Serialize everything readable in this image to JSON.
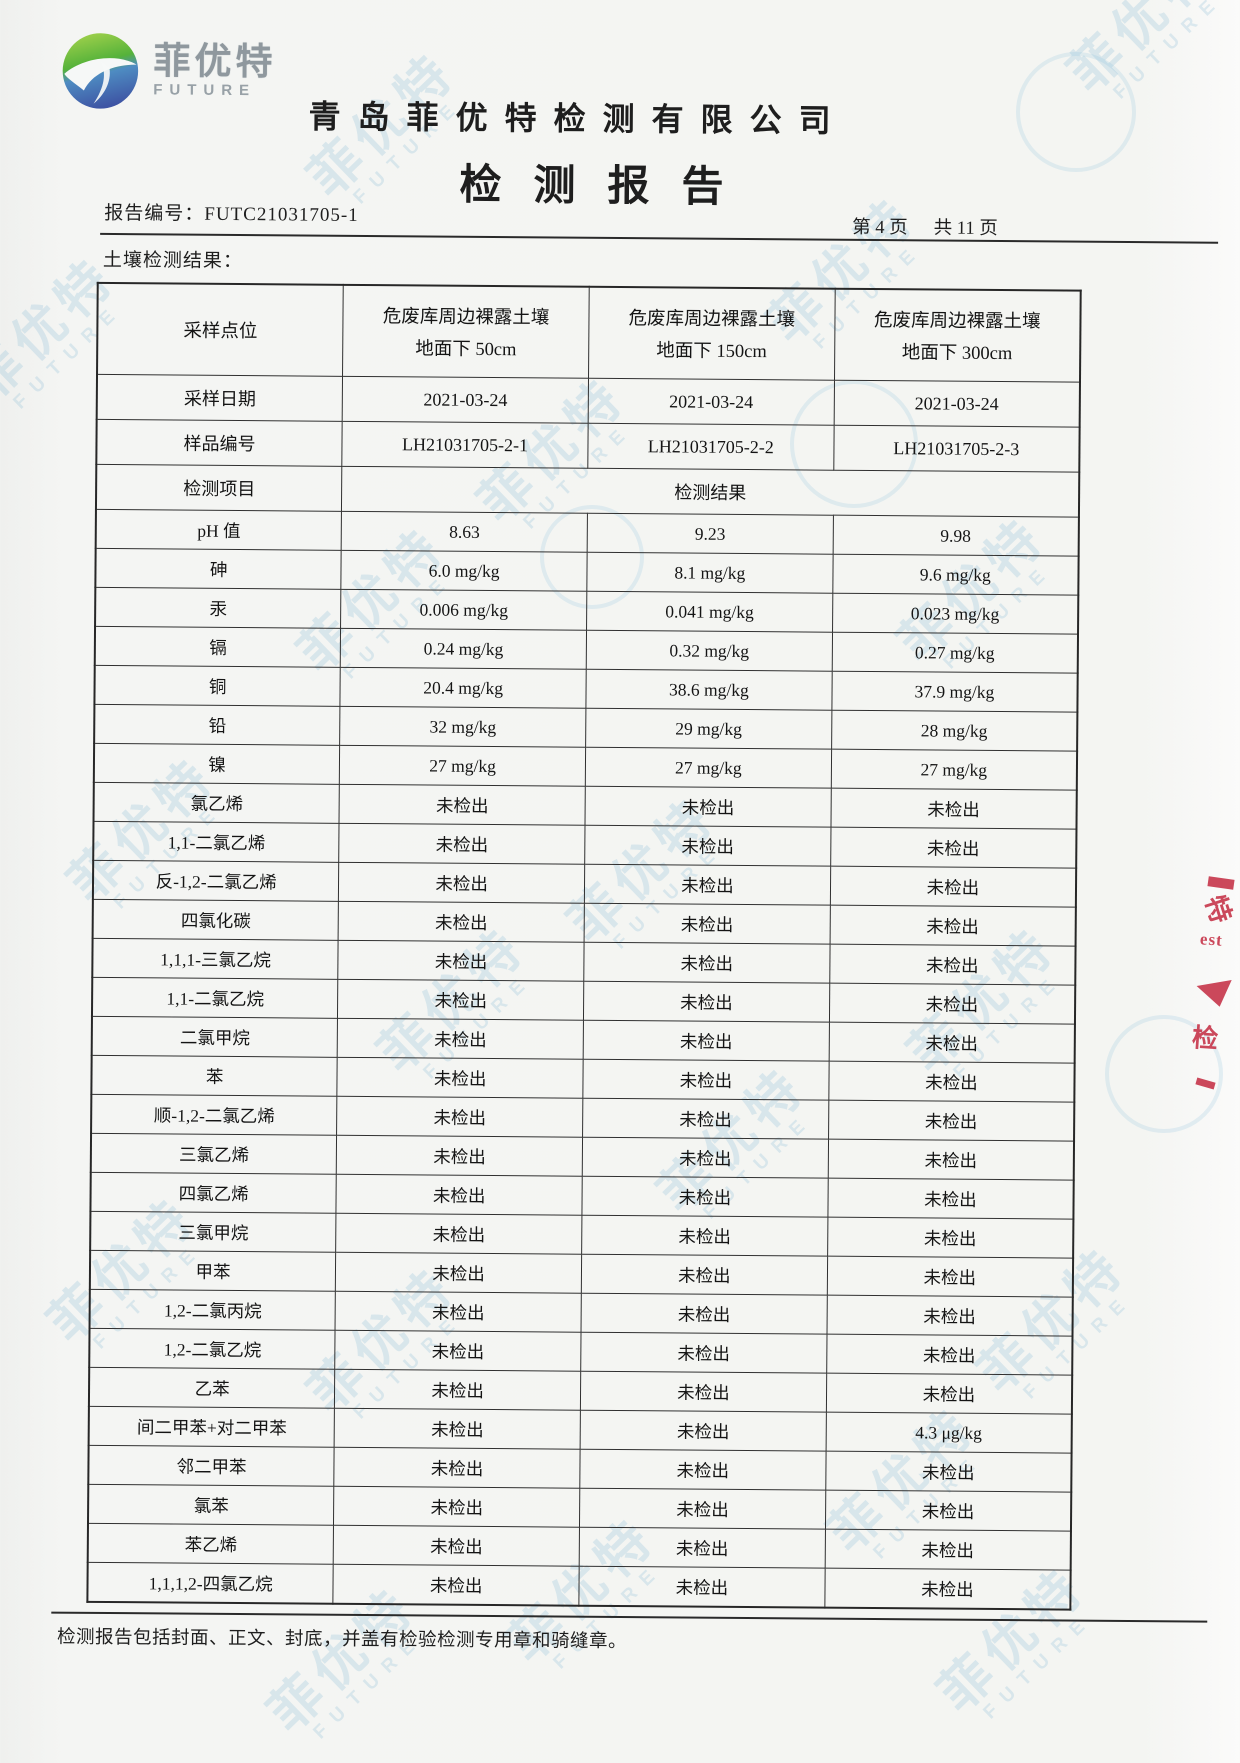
{
  "header": {
    "company_name": "青岛菲优特检测有限公司",
    "report_title": "检测报告",
    "report_no_label": "报告编号：",
    "report_no": "FUTC21031705-1",
    "page_current": "第 4 页",
    "page_total": "共 11 页",
    "section_label": "土壤检测结果："
  },
  "logo": {
    "brand_cn": "菲优特",
    "brand_en": "FUTURE"
  },
  "table": {
    "col_labels": {
      "site": "采样点位",
      "date": "采样日期",
      "sample_id": "样品编号",
      "item": "检测项目",
      "result": "检测结果"
    },
    "sites": [
      {
        "line1": "危废库周边裸露土壤",
        "line2": "地面下 50cm"
      },
      {
        "line1": "危废库周边裸露土壤",
        "line2": "地面下 150cm"
      },
      {
        "line1": "危废库周边裸露土壤",
        "line2": "地面下 300cm"
      }
    ],
    "dates": [
      "2021-03-24",
      "2021-03-24",
      "2021-03-24"
    ],
    "sample_ids": [
      "LH21031705-2-1",
      "LH21031705-2-2",
      "LH21031705-2-3"
    ],
    "rows": [
      {
        "item": "pH 值",
        "values": [
          "8.63",
          "9.23",
          "9.98"
        ]
      },
      {
        "item": "砷",
        "values": [
          "6.0 mg/kg",
          "8.1 mg/kg",
          "9.6 mg/kg"
        ]
      },
      {
        "item": "汞",
        "values": [
          "0.006 mg/kg",
          "0.041 mg/kg",
          "0.023 mg/kg"
        ]
      },
      {
        "item": "镉",
        "values": [
          "0.24 mg/kg",
          "0.32 mg/kg",
          "0.27 mg/kg"
        ]
      },
      {
        "item": "铜",
        "values": [
          "20.4 mg/kg",
          "38.6 mg/kg",
          "37.9 mg/kg"
        ]
      },
      {
        "item": "铅",
        "values": [
          "32 mg/kg",
          "29 mg/kg",
          "28 mg/kg"
        ]
      },
      {
        "item": "镍",
        "values": [
          "27 mg/kg",
          "27 mg/kg",
          "27 mg/kg"
        ]
      },
      {
        "item": "氯乙烯",
        "values": [
          "未检出",
          "未检出",
          "未检出"
        ]
      },
      {
        "item": "1,1-二氯乙烯",
        "values": [
          "未检出",
          "未检出",
          "未检出"
        ]
      },
      {
        "item": "反-1,2-二氯乙烯",
        "values": [
          "未检出",
          "未检出",
          "未检出"
        ]
      },
      {
        "item": "四氯化碳",
        "values": [
          "未检出",
          "未检出",
          "未检出"
        ]
      },
      {
        "item": "1,1,1-三氯乙烷",
        "values": [
          "未检出",
          "未检出",
          "未检出"
        ]
      },
      {
        "item": "1,1-二氯乙烷",
        "values": [
          "未检出",
          "未检出",
          "未检出"
        ]
      },
      {
        "item": "二氯甲烷",
        "values": [
          "未检出",
          "未检出",
          "未检出"
        ]
      },
      {
        "item": "苯",
        "values": [
          "未检出",
          "未检出",
          "未检出"
        ]
      },
      {
        "item": "顺-1,2-二氯乙烯",
        "values": [
          "未检出",
          "未检出",
          "未检出"
        ]
      },
      {
        "item": "三氯乙烯",
        "values": [
          "未检出",
          "未检出",
          "未检出"
        ]
      },
      {
        "item": "四氯乙烯",
        "values": [
          "未检出",
          "未检出",
          "未检出"
        ]
      },
      {
        "item": "三氯甲烷",
        "values": [
          "未检出",
          "未检出",
          "未检出"
        ]
      },
      {
        "item": "甲苯",
        "values": [
          "未检出",
          "未检出",
          "未检出"
        ]
      },
      {
        "item": "1,2-二氯丙烷",
        "values": [
          "未检出",
          "未检出",
          "未检出"
        ]
      },
      {
        "item": "1,2-二氯乙烷",
        "values": [
          "未检出",
          "未检出",
          "未检出"
        ]
      },
      {
        "item": "乙苯",
        "values": [
          "未检出",
          "未检出",
          "未检出"
        ]
      },
      {
        "item": "间二甲苯+对二甲苯",
        "values": [
          "未检出",
          "未检出",
          "4.3 μg/kg"
        ]
      },
      {
        "item": "邻二甲苯",
        "values": [
          "未检出",
          "未检出",
          "未检出"
        ]
      },
      {
        "item": "氯苯",
        "values": [
          "未检出",
          "未检出",
          "未检出"
        ]
      },
      {
        "item": "苯乙烯",
        "values": [
          "未检出",
          "未检出",
          "未检出"
        ]
      },
      {
        "item": "1,1,1,2-四氯乙烷",
        "values": [
          "未检出",
          "未检出",
          "未检出"
        ]
      }
    ]
  },
  "footer": {
    "note": "检测报告包括封面、正文、封底，并盖有检验检测专用章和骑缝章。"
  },
  "watermark": {
    "text_cn": "菲优特",
    "text_en": "FUTURE",
    "color": "#7ab2d4"
  },
  "stamp": {
    "color": "#c83a4e",
    "char_top": "特",
    "text_mid": "est",
    "char_bottom": "检"
  }
}
